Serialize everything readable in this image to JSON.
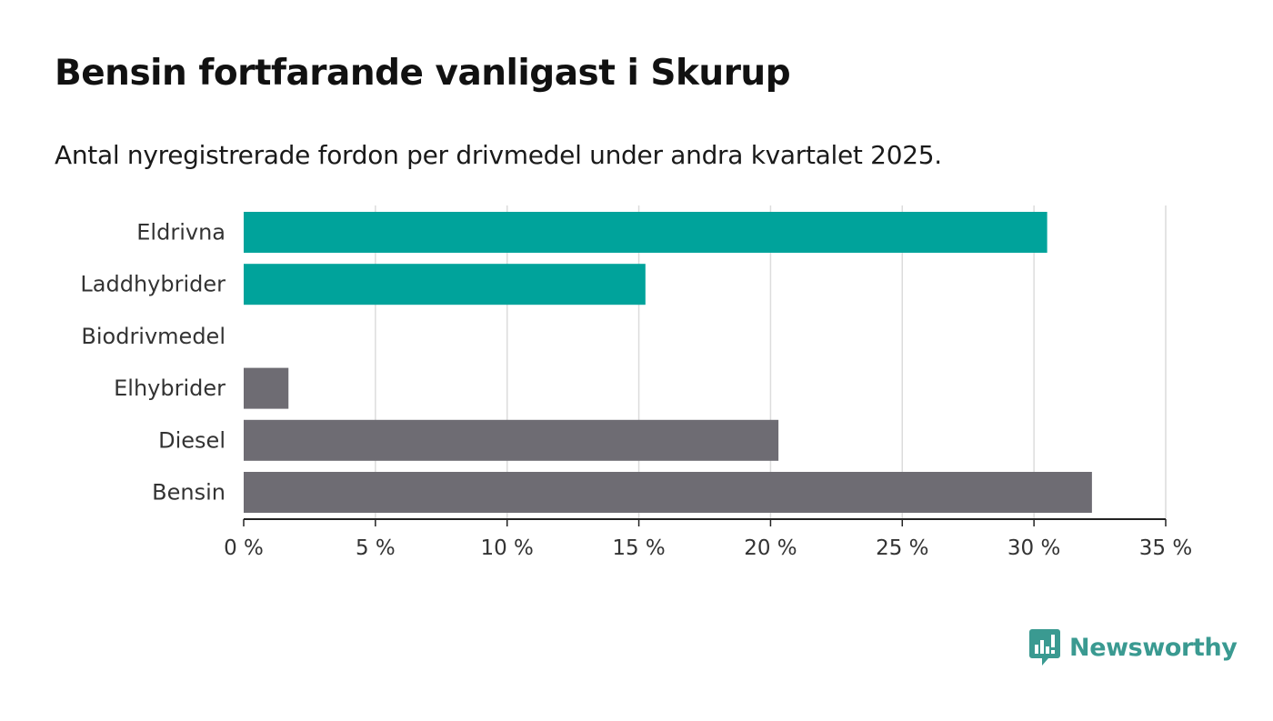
{
  "title": "Bensin fortfarande vanligast i Skurup",
  "subtitle": "Antal nyregistrerade fordon per drivmedel under andra kvartalet 2025.",
  "brand": {
    "name": "Newsworthy",
    "icon": "newsworthy-logo-icon",
    "color": "#3a9a91"
  },
  "chart_data": {
    "type": "bar",
    "orientation": "horizontal",
    "categories": [
      "Eldrivna",
      "Laddhybrider",
      "Biodrivmedel",
      "Elhybrider",
      "Diesel",
      "Bensin"
    ],
    "values": [
      30.5,
      15.25,
      0,
      1.7,
      20.3,
      32.2
    ],
    "colors": [
      "#00a39b",
      "#00a39b",
      "#6e6c73",
      "#6e6c73",
      "#6e6c73",
      "#6e6c73"
    ],
    "xlim": [
      0,
      35
    ],
    "ticks": [
      0,
      5,
      10,
      15,
      20,
      25,
      30,
      35
    ],
    "tick_labels": [
      "0 %",
      "5 %",
      "10 %",
      "15 %",
      "20 %",
      "25 %",
      "30 %",
      "35 %"
    ],
    "grid": true
  }
}
